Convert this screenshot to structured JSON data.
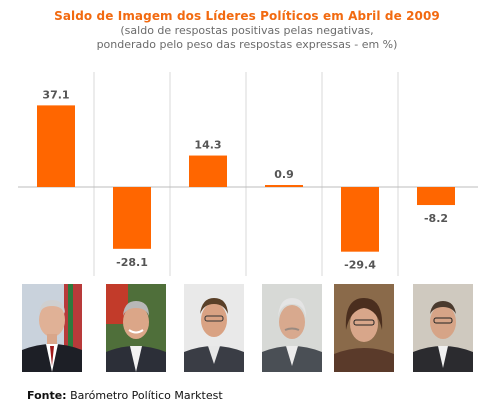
{
  "chart_data": {
    "type": "bar",
    "title": "Saldo de Imagem dos Líderes Políticos em Abril de 2009",
    "subtitle_lines": [
      "(saldo de respostas positivas pelas negativas,",
      "ponderado pelo peso das respostas expressas - em %)"
    ],
    "categories": [
      "",
      "",
      "",
      "",
      "",
      ""
    ],
    "values": [
      37.1,
      -28.1,
      14.3,
      0.9,
      -29.4,
      -8.2
    ],
    "value_labels": [
      "37.1",
      "-28.1",
      "14.3",
      "0.9",
      "-29.4",
      "-8.2"
    ],
    "ylim": [
      -35,
      45
    ],
    "grid": false,
    "bar_color": "#ff6600"
  },
  "source": {
    "label": "Fonte:",
    "text": "Barómetro Político Marktest"
  },
  "colors": {
    "title": "#f26a10",
    "bar": "#ff6600",
    "separator": "#d9d9d9",
    "baseline": "#bdbdbd",
    "value_label": "#555555"
  }
}
